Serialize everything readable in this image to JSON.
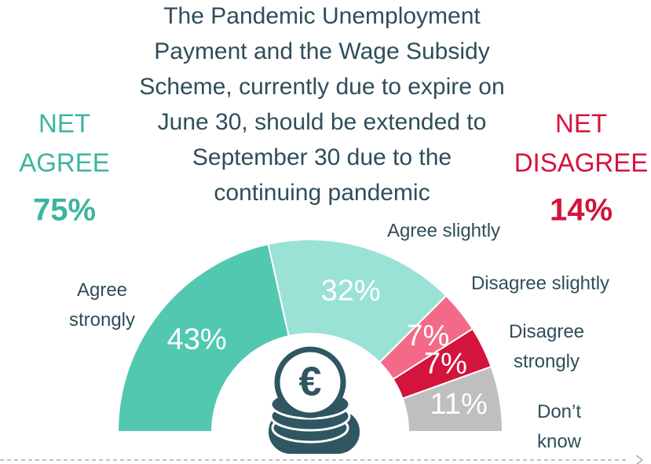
{
  "chart_data": {
    "type": "pie",
    "title": [
      "The Pandemic Unemployment",
      "Payment and the Wage Subsidy",
      "Scheme, currently due to expire on",
      "June 30, should be extended to",
      "September 30 due to the",
      "continuing pandemic"
    ],
    "categories": [
      "Agree strongly",
      "Agree slightly",
      "Disagree slightly",
      "Disagree strongly",
      "Don’t know"
    ],
    "values": [
      43,
      32,
      7,
      7,
      11
    ],
    "value_labels": [
      "43%",
      "32%",
      "7%",
      "7%",
      "11%"
    ],
    "colors": [
      "#52c8b1",
      "#9ae2d5",
      "#f26a87",
      "#d3143c",
      "#bfbfbf"
    ],
    "annotations": {
      "net_agree": {
        "label": [
          "NET",
          "AGREE"
        ],
        "value": "75%",
        "color": "#3cb59e"
      },
      "net_disagree": {
        "label": [
          "NET",
          "DISAGREE"
        ],
        "value": "14%",
        "color": "#d3143c"
      }
    }
  }
}
